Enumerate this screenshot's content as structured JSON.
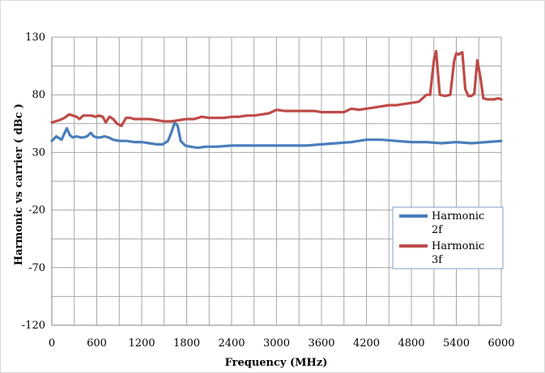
{
  "chart_data": {
    "type": "line",
    "title": "",
    "xlabel": "Frequency (MHz)",
    "ylabel": "Harmonic vs carrier ( dBc )",
    "xlim": [
      0,
      6000
    ],
    "ylim": [
      -120,
      130
    ],
    "xticks": [
      0,
      600,
      1200,
      1800,
      2400,
      3000,
      3600,
      4200,
      4800,
      5400,
      6000
    ],
    "yticks": [
      130,
      80,
      30,
      -20,
      -70,
      -120
    ],
    "grid": true,
    "legend_position": "bottom-right",
    "series": [
      {
        "name": "Harmonic 2f",
        "color": "#4a7ebb",
        "x": [
          0,
          60,
          130,
          200,
          240,
          280,
          330,
          380,
          420,
          470,
          520,
          560,
          600,
          650,
          700,
          760,
          820,
          900,
          1000,
          1100,
          1200,
          1300,
          1400,
          1480,
          1550,
          1600,
          1640,
          1680,
          1720,
          1780,
          1850,
          1950,
          2050,
          2200,
          2400,
          2600,
          2800,
          3000,
          3200,
          3400,
          3600,
          3800,
          4000,
          4200,
          4300,
          4400,
          4600,
          4800,
          5000,
          5200,
          5400,
          5600,
          5800,
          6000
        ],
        "values": [
          40,
          44,
          41,
          51,
          45,
          43,
          44,
          43,
          43,
          44,
          47,
          44,
          43,
          43,
          44,
          43,
          41,
          40,
          40,
          39,
          39,
          38,
          37,
          37,
          40,
          48,
          56,
          53,
          40,
          36,
          35,
          34,
          35,
          35,
          36,
          36,
          36,
          36,
          36,
          36,
          37,
          38,
          39,
          41,
          41,
          41,
          40,
          39,
          39,
          38,
          39,
          38,
          39,
          40
        ]
      },
      {
        "name": "Harmonic 3f",
        "color": "#be4b48",
        "x": [
          0,
          100,
          170,
          230,
          280,
          330,
          370,
          420,
          480,
          530,
          580,
          630,
          680,
          720,
          770,
          820,
          870,
          930,
          990,
          1050,
          1100,
          1200,
          1300,
          1400,
          1500,
          1600,
          1700,
          1800,
          1900,
          2000,
          2100,
          2200,
          2300,
          2400,
          2500,
          2600,
          2700,
          2800,
          2900,
          3000,
          3100,
          3200,
          3300,
          3400,
          3500,
          3600,
          3700,
          3800,
          3900,
          4000,
          4100,
          4200,
          4300,
          4400,
          4500,
          4600,
          4700,
          4800,
          4900,
          5000,
          5050,
          5100,
          5130,
          5180,
          5250,
          5320,
          5370,
          5400,
          5430,
          5480,
          5520,
          5560,
          5600,
          5640,
          5680,
          5720,
          5760,
          5820,
          5900,
          5960,
          6000
        ],
        "values": [
          56,
          58,
          60,
          63,
          62,
          61,
          59,
          62,
          62,
          62,
          61,
          62,
          61,
          56,
          61,
          59,
          55,
          53,
          60,
          60,
          59,
          59,
          59,
          58,
          57,
          57,
          58,
          59,
          59,
          61,
          60,
          60,
          60,
          61,
          61,
          62,
          62,
          63,
          64,
          67,
          66,
          66,
          66,
          66,
          66,
          65,
          65,
          65,
          65,
          68,
          67,
          68,
          69,
          70,
          71,
          71,
          72,
          73,
          74,
          80,
          80,
          110,
          118,
          80,
          79,
          80,
          109,
          116,
          115,
          117,
          85,
          79,
          79,
          81,
          110,
          96,
          77,
          76,
          76,
          77,
          76
        ]
      }
    ]
  }
}
